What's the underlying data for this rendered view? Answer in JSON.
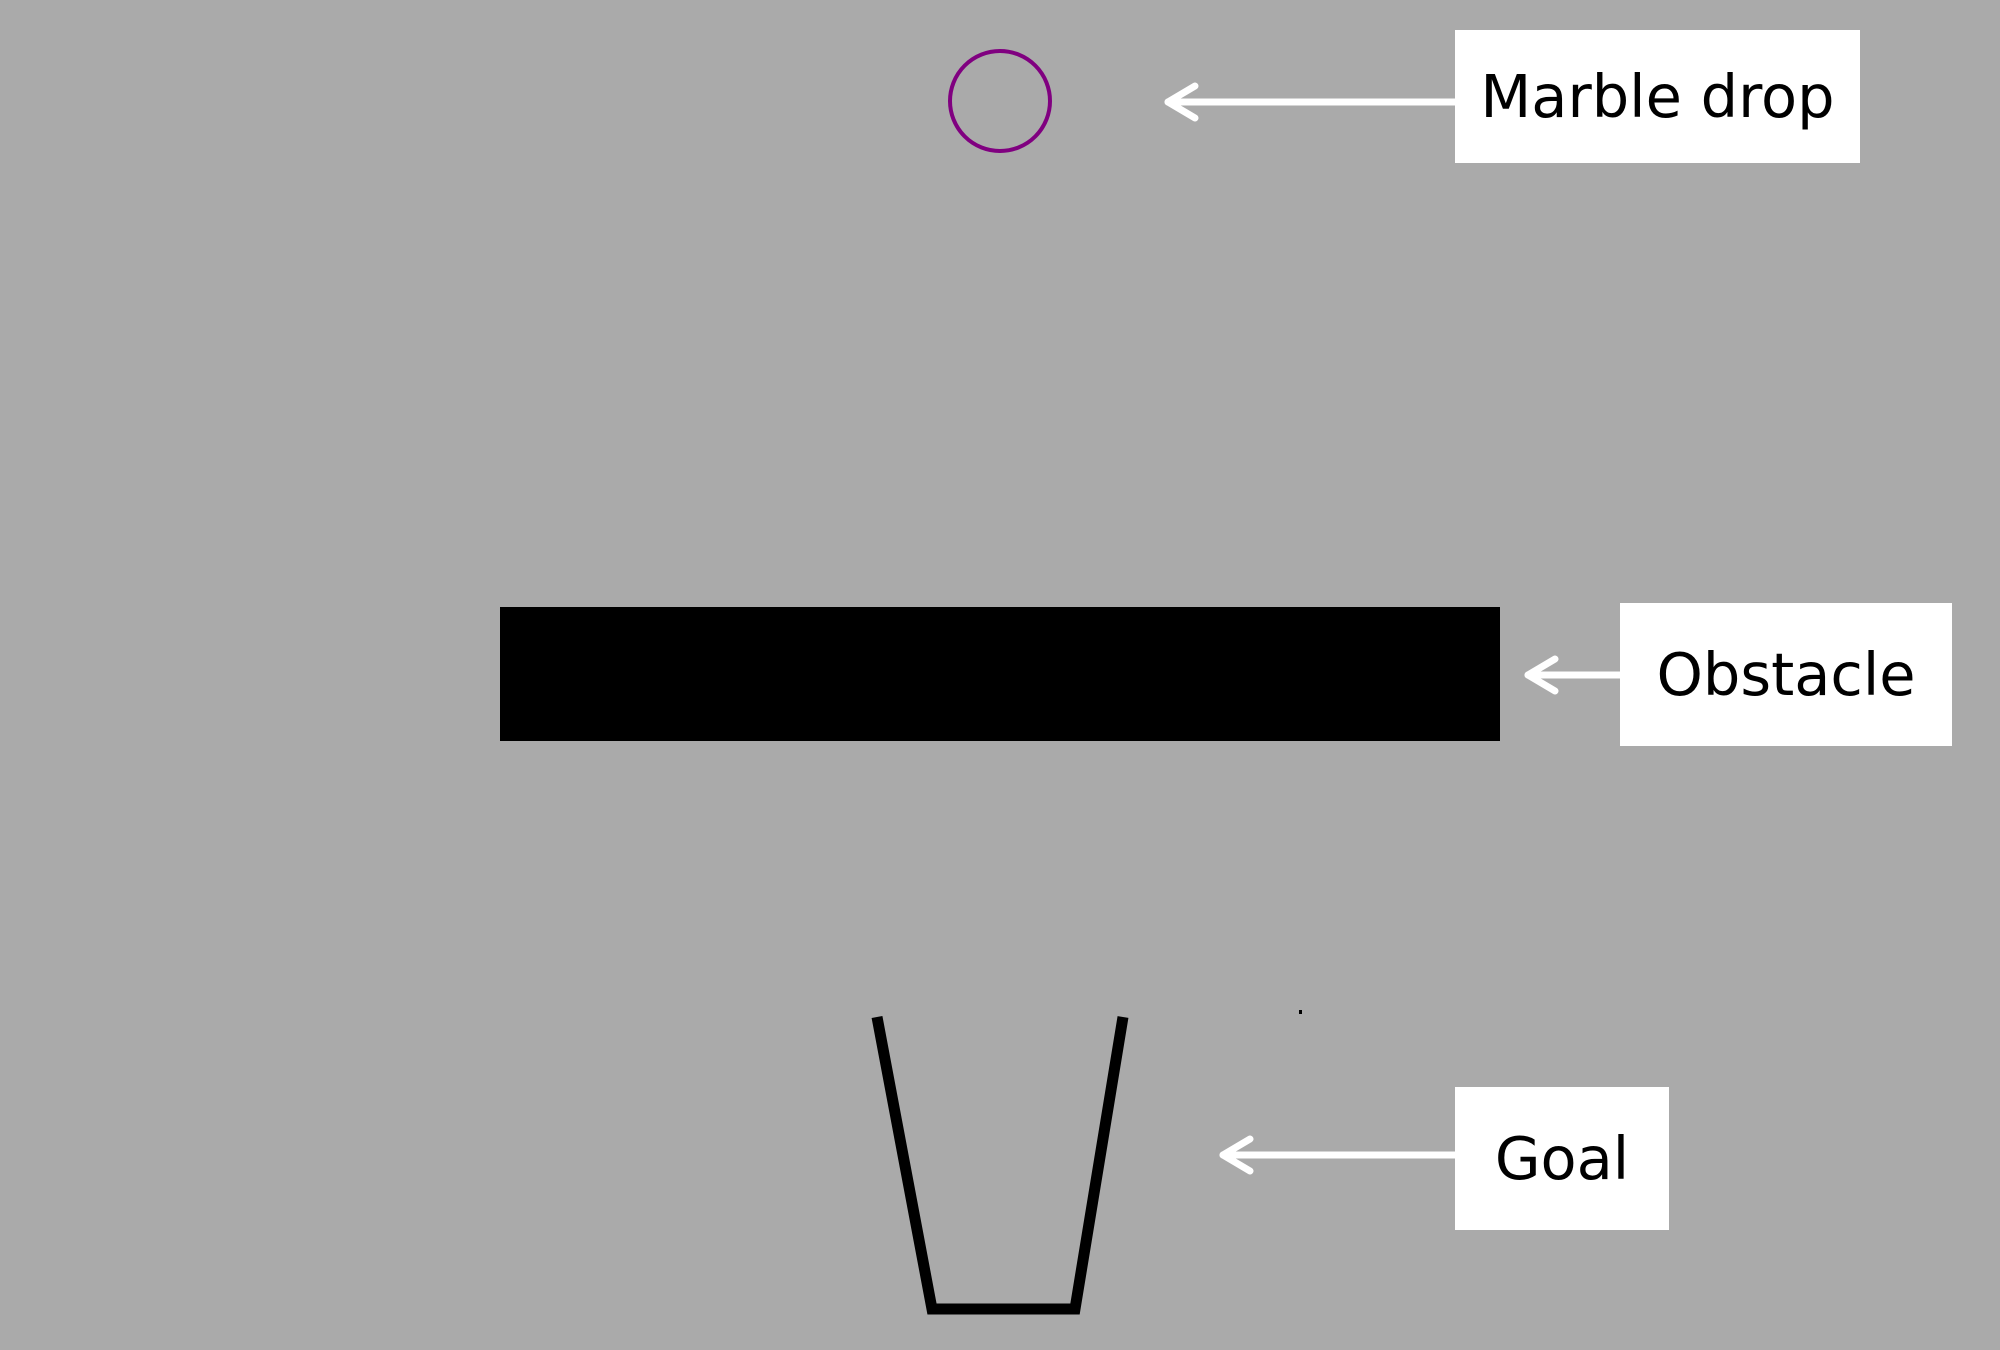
{
  "scene": {
    "background_color": "#aaaaaa",
    "marble": {
      "color": "#800080",
      "icon": "marble-circle-icon"
    },
    "obstacle": {
      "color": "#000000"
    },
    "goal": {
      "color": "#000000",
      "icon": "goal-cup-icon"
    }
  },
  "callouts": {
    "marble_label": "Marble drop",
    "obstacle_label": "Obstacle",
    "goal_label": "Goal",
    "arrow_color": "#ffffff",
    "box_color": "#ffffff"
  }
}
